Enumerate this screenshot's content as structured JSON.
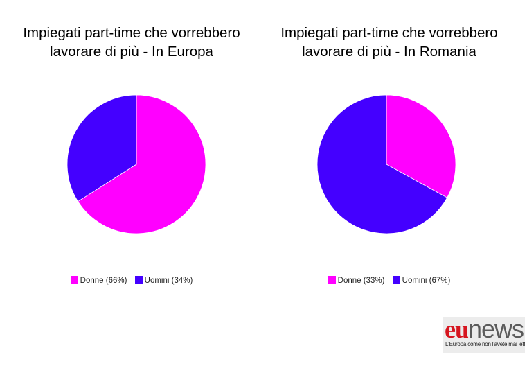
{
  "chart_data": [
    {
      "type": "pie",
      "title_lines": [
        "Impiegati part-time che vorrebbero",
        "lavorare di più - In Europa"
      ],
      "categories": [
        "Donne",
        "Uomini"
      ],
      "values": [
        66,
        34
      ],
      "legend_labels": [
        "Donne (66%)",
        "Uomini (34%)"
      ],
      "colors": [
        "#ff00ff",
        "#4400ff"
      ],
      "legend_position": "bottom"
    },
    {
      "type": "pie",
      "title_lines": [
        "Impiegati part-time che vorrebbero",
        "lavorare di più - In Romania"
      ],
      "categories": [
        "Donne",
        "Uomini"
      ],
      "values": [
        33,
        67
      ],
      "legend_labels": [
        "Donne (33%)",
        "Uomini (67%)"
      ],
      "colors": [
        "#ff00ff",
        "#4400ff"
      ],
      "legend_position": "bottom"
    }
  ],
  "logo": {
    "eu": "eu",
    "news": "news",
    "tagline": "L'Europa come non l'avete mai letta"
  }
}
